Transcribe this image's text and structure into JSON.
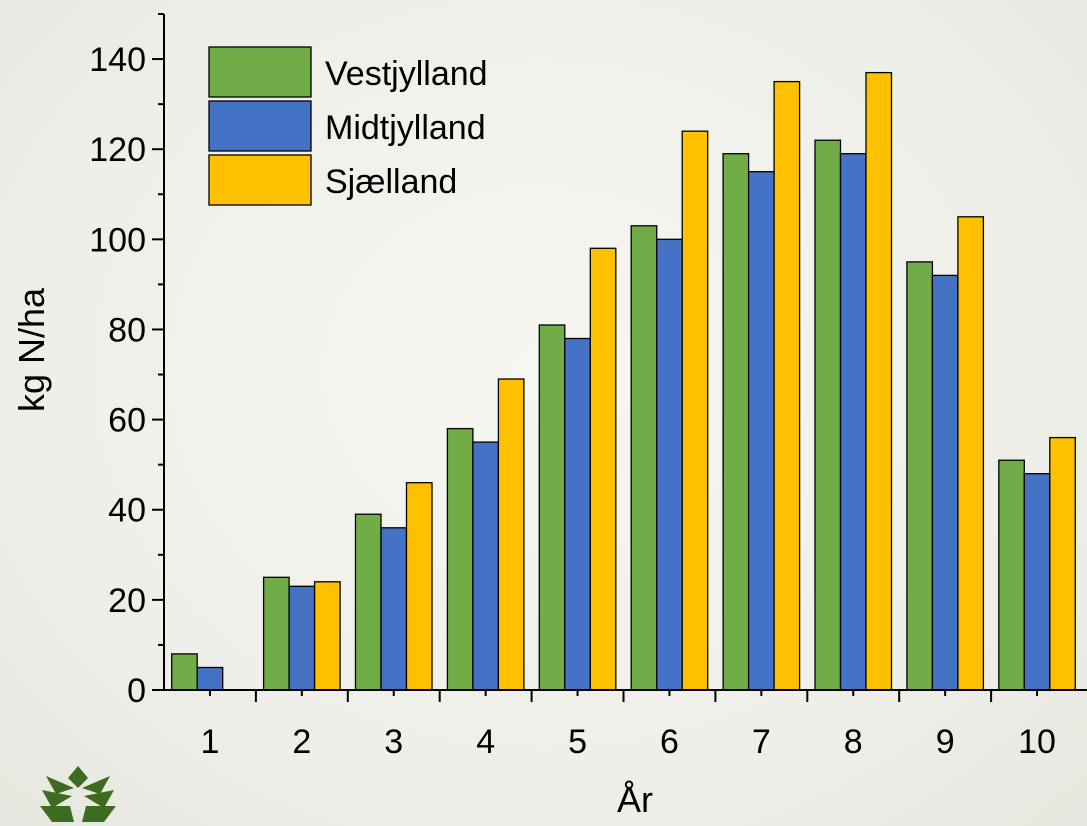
{
  "chart_data": {
    "type": "bar",
    "xlabel": "År",
    "ylabel": "kg N/ha",
    "ylim": [
      0,
      150
    ],
    "yticks": [
      0,
      20,
      40,
      60,
      80,
      100,
      120,
      140
    ],
    "categories": [
      "1",
      "2",
      "3",
      "4",
      "5",
      "6",
      "7",
      "8",
      "9",
      "10"
    ],
    "series": [
      {
        "name": "Vestjylland",
        "color": "#70ad47",
        "values": [
          8,
          25,
          39,
          58,
          81,
          103,
          119,
          122,
          95,
          51
        ]
      },
      {
        "name": "Midtjylland",
        "color": "#4472c4",
        "values": [
          5,
          23,
          36,
          55,
          78,
          100,
          115,
          119,
          92,
          48
        ]
      },
      {
        "name": "Sjælland",
        "color": "#ffc000",
        "values": [
          0,
          24,
          46,
          69,
          98,
          124,
          135,
          137,
          105,
          56
        ]
      }
    ],
    "legend": "top-left",
    "grid": false
  },
  "logo": {
    "icon": "leaf-logo-icon",
    "color": "#3d6b1f"
  }
}
